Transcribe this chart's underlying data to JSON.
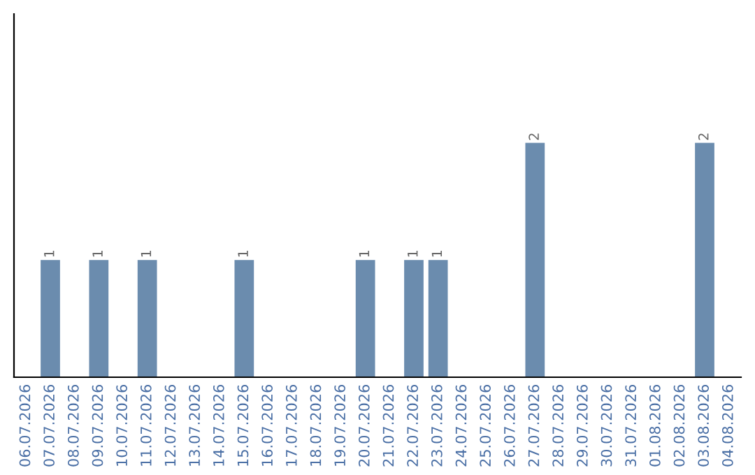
{
  "chart_data": {
    "type": "bar",
    "categories": [
      "06.07.2026",
      "07.07.2026",
      "08.07.2026",
      "09.07.2026",
      "10.07.2026",
      "11.07.2026",
      "12.07.2026",
      "13.07.2026",
      "14.07.2026",
      "15.07.2026",
      "16.07.2026",
      "17.07.2026",
      "18.07.2026",
      "19.07.2026",
      "20.07.2026",
      "21.07.2026",
      "22.07.2026",
      "23.07.2026",
      "24.07.2026",
      "25.07.2026",
      "26.07.2026",
      "27.07.2026",
      "28.07.2026",
      "29.07.2026",
      "30.07.2026",
      "31.07.2026",
      "01.08.2026",
      "02.08.2026",
      "03.08.2026",
      "04.08.2026"
    ],
    "values": [
      0,
      1,
      0,
      1,
      0,
      1,
      0,
      0,
      0,
      1,
      0,
      0,
      0,
      0,
      1,
      0,
      1,
      1,
      0,
      0,
      0,
      2,
      0,
      0,
      0,
      0,
      0,
      0,
      2,
      0
    ],
    "value_labels": [
      null,
      "1",
      null,
      "1",
      null,
      "1",
      null,
      null,
      null,
      "1",
      null,
      null,
      null,
      null,
      "1",
      null,
      "1",
      "1",
      null,
      null,
      null,
      "2",
      null,
      null,
      null,
      null,
      null,
      null,
      "2",
      null
    ],
    "color": "#6b8cae",
    "ylim": [
      0,
      3.1
    ],
    "tick_labels": "x",
    "grid": false,
    "legend": false
  }
}
